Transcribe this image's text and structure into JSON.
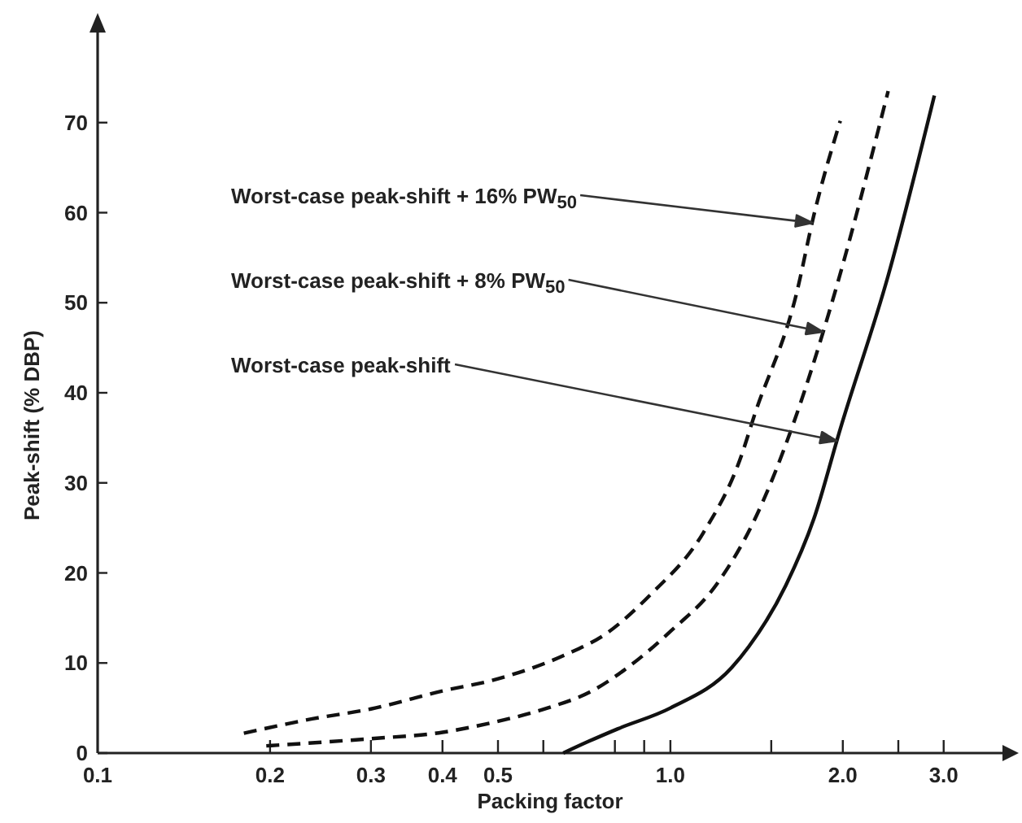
{
  "chart_data": {
    "type": "line",
    "xlabel": "Packing factor",
    "ylabel": "Peak-shift (% DBP)",
    "log": "x",
    "xlim": [
      0.1,
      3.8
    ],
    "ylim": [
      0,
      80
    ],
    "xticks": [
      0.1,
      0.2,
      0.3,
      0.4,
      0.5,
      {
        "value": 0.6,
        "label": null
      },
      {
        "value": 0.8,
        "label": null
      },
      {
        "value": 0.9,
        "label": null
      },
      {
        "value": 1,
        "label": "1.0"
      },
      {
        "value": 1.5,
        "label": null
      },
      {
        "value": 2,
        "label": "2.0"
      },
      {
        "value": 2.5,
        "label": null
      },
      {
        "value": 3,
        "label": "3.0"
      }
    ],
    "yticks": [
      0,
      10,
      20,
      30,
      40,
      50,
      60,
      70
    ],
    "grid": false,
    "series": [
      {
        "color": "#111111",
        "line_style": "dashed",
        "x": [
          0.18,
          0.237,
          0.3,
          0.4,
          0.49,
          0.66,
          0.77,
          0.92,
          1.14,
          1.33,
          1.4,
          1.66,
          1.78,
          1.98
        ],
        "values": [
          2.2,
          3.8,
          4.9,
          6.9,
          8.1,
          11,
          13.2,
          17.5,
          24.4,
          33,
          37.4,
          51,
          59.7,
          70.2
        ]
      },
      {
        "color": "#111111",
        "line_style": "dashed",
        "x": [
          0.197,
          0.3,
          0.4,
          0.49,
          0.61,
          0.73,
          0.83,
          1.0,
          1.2,
          1.4,
          1.64,
          1.9,
          2.4
        ],
        "values": [
          0.8,
          1.6,
          2.3,
          3.4,
          5,
          6.9,
          9.2,
          13.5,
          18.6,
          25.8,
          36.6,
          49.3,
          73.5
        ]
      },
      {
        "color": "#111111",
        "line_style": "solid",
        "x": [
          0.65,
          0.72,
          0.81,
          1.0,
          1.28,
          1.37,
          1.59,
          1.78,
          1.98,
          2.4,
          2.89
        ],
        "values": [
          0,
          1.3,
          2.7,
          5,
          9.5,
          11.8,
          18.6,
          26,
          36,
          53,
          73
        ]
      }
    ],
    "annotations": [
      "Worst-case peak-shift + 16% PW$_{50}$",
      "Worst-case peak-shift + 8% PW$_{50}$",
      "Worst-case peak-shift"
    ]
  }
}
